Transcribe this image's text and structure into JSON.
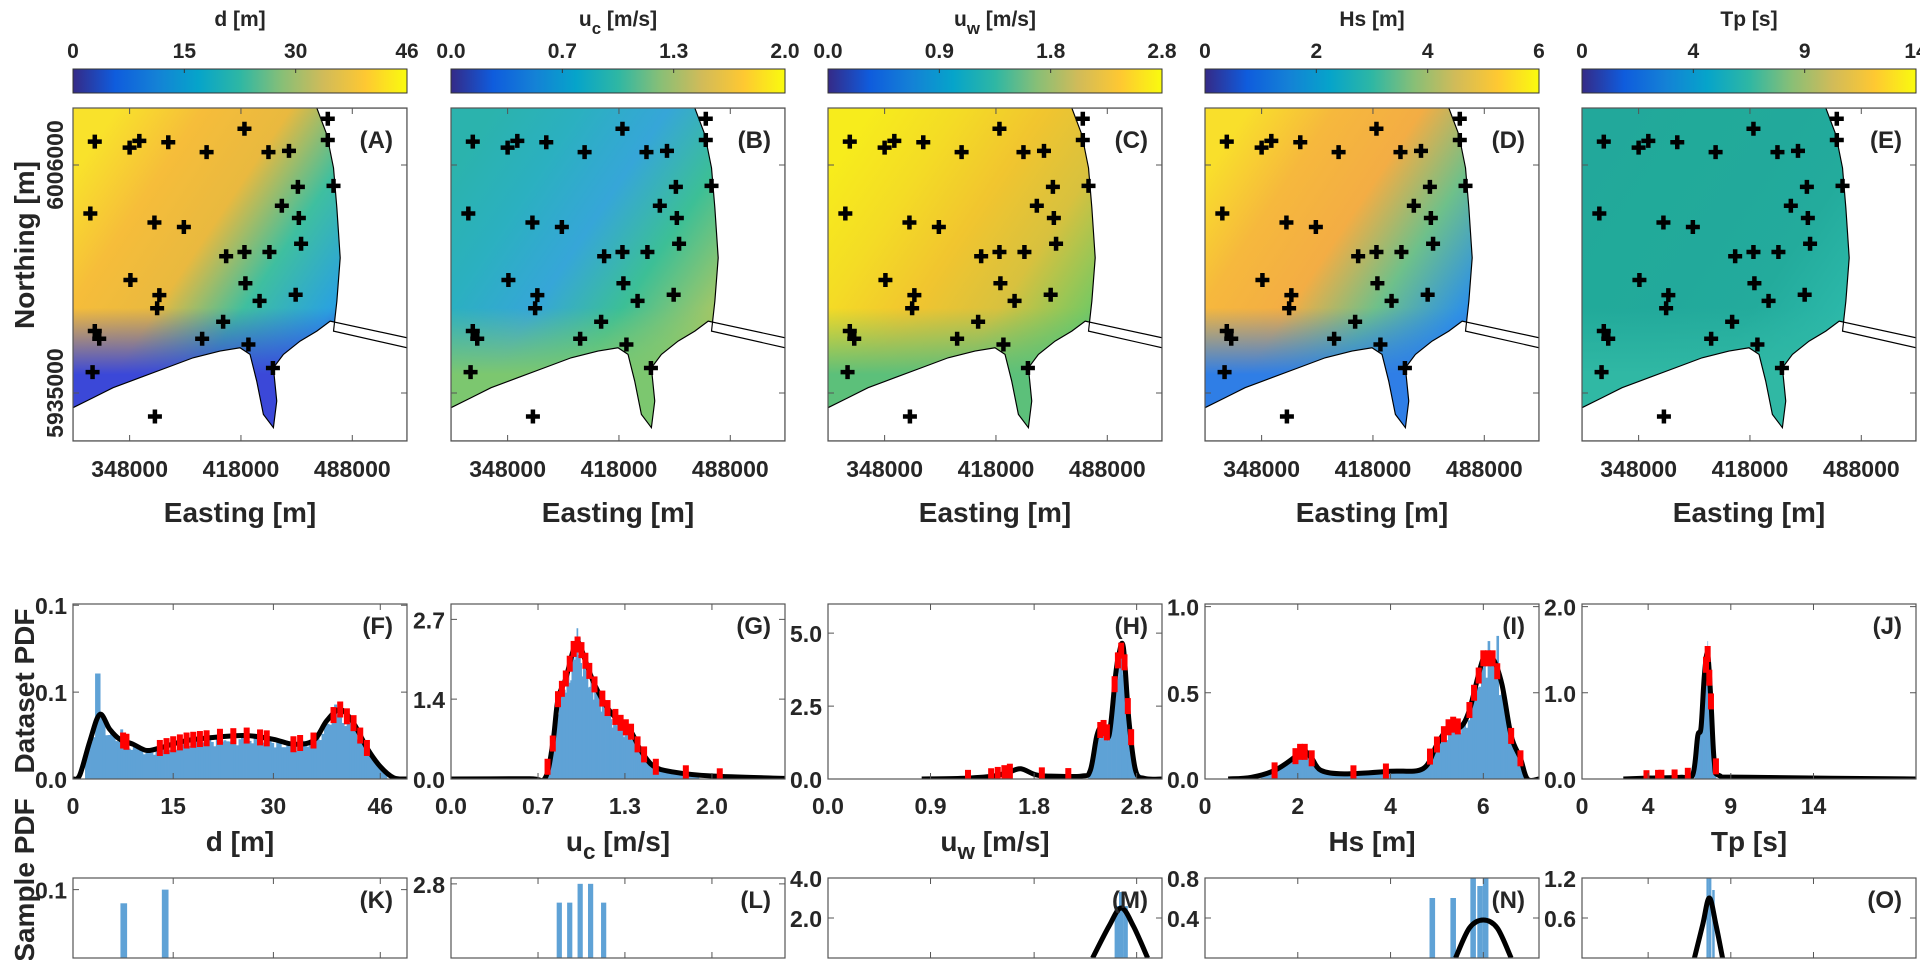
{
  "figure": {
    "northing_label": "Northing [m]",
    "easting_label": "Easting [m]",
    "dataset_pdf_label": "Dataset PDF",
    "sample_pdf_label": "Sample PDF"
  },
  "colors": {
    "hist_bar": "#5fa2d6",
    "kde_line": "#000000",
    "marker": "#ff0000",
    "land": "#ffffff",
    "station": "#000000"
  },
  "colormap": [
    "#352a87",
    "#0f5cdd",
    "#1481d6",
    "#06a4ca",
    "#2eb7a4",
    "#87bf77",
    "#d1bb59",
    "#fec832",
    "#f9fb0e"
  ],
  "map_axes": {
    "xlim": [
      312400,
      522400
    ],
    "ylim": [
      5920070,
      6023750
    ],
    "easting_tick_values": [
      348000,
      418000,
      488000
    ],
    "easting_ticks": [
      "348000",
      "418000",
      "488000"
    ],
    "northing_tick_values": [
      6006000,
      5935000
    ],
    "northing_ticks": [
      "6006000",
      "5935000"
    ]
  },
  "maps": [
    {
      "panel": "(A)",
      "title": "d [m]",
      "colorbar_ticks": [
        "0",
        "15",
        "30",
        "46"
      ],
      "field_colors": [
        "#f9e22b",
        "#f6bd3a",
        "#e9b93f",
        "#3fbf9f",
        "#2aa2df",
        "#3b40d0"
      ],
      "nearshore_color": "#3b48d8"
    },
    {
      "panel": "(B)",
      "title": "u",
      "title_sub": "c",
      "title_unit": " [m/s]",
      "colorbar_ticks": [
        "0.0",
        "0.7",
        "1.3",
        "2.0"
      ],
      "field_colors": [
        "#2bb3ad",
        "#2bb0c0",
        "#36a6d8",
        "#3cbf96",
        "#9cc66a",
        "#e8c93a"
      ],
      "nearshore_color": "#7cc76f"
    },
    {
      "panel": "(C)",
      "title": "u",
      "title_sub": "w",
      "title_unit": " [m/s]",
      "colorbar_ticks": [
        "0.0",
        "0.9",
        "1.8",
        "2.8"
      ],
      "field_colors": [
        "#f7ec1c",
        "#f4dc25",
        "#f1c52f",
        "#d8c13e",
        "#7cc860",
        "#2db3a0"
      ],
      "nearshore_color": "#5cc07a"
    },
    {
      "panel": "(D)",
      "title": "Hs [m]",
      "colorbar_ticks": [
        "0",
        "2",
        "4",
        "6"
      ],
      "field_colors": [
        "#f9df2b",
        "#f6b83d",
        "#f3ad44",
        "#6ec08a",
        "#2f92e4",
        "#3a5be0"
      ],
      "nearshore_color": "#2f7ee6"
    },
    {
      "panel": "(E)",
      "title": "Tp [s]",
      "colorbar_ticks": [
        "0",
        "4",
        "9",
        "14"
      ],
      "field_colors": [
        "#22a89b",
        "#21aa9a",
        "#22a99b",
        "#23ab9c",
        "#2bb7a8",
        "#3ec4a8"
      ],
      "nearshore_color": "#30b8a4"
    }
  ],
  "stations": [
    [
      326100,
      6013300
    ],
    [
      348000,
      6011400
    ],
    [
      354100,
      6013500
    ],
    [
      372300,
      6013100
    ],
    [
      396400,
      6010000
    ],
    [
      420200,
      6017300
    ],
    [
      435300,
      6010000
    ],
    [
      448200,
      6010400
    ],
    [
      472600,
      6020400
    ],
    [
      472600,
      6013800
    ],
    [
      453800,
      5999200
    ],
    [
      476200,
      5999500
    ],
    [
      443700,
      5993300
    ],
    [
      454400,
      5989500
    ],
    [
      323300,
      5990900
    ],
    [
      363600,
      5988100
    ],
    [
      382100,
      5986700
    ],
    [
      455800,
      5981500
    ],
    [
      408700,
      5977600
    ],
    [
      420200,
      5978900
    ],
    [
      435900,
      5978900
    ],
    [
      348500,
      5970200
    ],
    [
      420800,
      5969200
    ],
    [
      366700,
      5965500
    ],
    [
      365300,
      5961400
    ],
    [
      429700,
      5963700
    ],
    [
      452400,
      5965600
    ],
    [
      406800,
      5957200
    ],
    [
      326100,
      5954300
    ],
    [
      328900,
      5951900
    ],
    [
      393600,
      5951900
    ],
    [
      422700,
      5950100
    ],
    [
      438100,
      5942800
    ],
    [
      324700,
      5941500
    ],
    [
      363900,
      5927700
    ]
  ],
  "chart_data": [
    {
      "panel": "(F)",
      "type": "bar",
      "xlabel": "d [m]",
      "ylabel": "Dataset PDF",
      "xlim": [
        0,
        50
      ],
      "ylim": [
        0,
        0.141
      ],
      "xtick_values": [
        0,
        15,
        30,
        46
      ],
      "xticks": [
        "0",
        "15",
        "30",
        "46"
      ],
      "ytick_values": [
        0,
        0.07,
        0.14
      ],
      "yticks": [
        "0.0",
        "0.1",
        "0.1"
      ],
      "kde": [
        [
          0,
          0
        ],
        [
          1,
          0.003
        ],
        [
          2.5,
          0.03
        ],
        [
          4,
          0.052
        ],
        [
          5.5,
          0.04
        ],
        [
          7,
          0.032
        ],
        [
          9,
          0.028
        ],
        [
          11,
          0.023
        ],
        [
          13,
          0.025
        ],
        [
          17,
          0.031
        ],
        [
          22,
          0.034
        ],
        [
          26,
          0.035
        ],
        [
          30,
          0.032
        ],
        [
          33,
          0.028
        ],
        [
          36,
          0.031
        ],
        [
          38,
          0.047
        ],
        [
          40,
          0.056
        ],
        [
          42,
          0.045
        ],
        [
          44,
          0.025
        ],
        [
          46,
          0.01
        ],
        [
          48,
          0.001
        ],
        [
          50,
          0
        ]
      ],
      "hist_range": [
        1.8,
        47
      ],
      "hist_spikes": [
        [
          3.7,
          0.085
        ],
        [
          4.0,
          0.07
        ],
        [
          7.2,
          0.04
        ],
        [
          39.0,
          0.058
        ],
        [
          39.3,
          0.06
        ]
      ],
      "markers": [
        7.5,
        8,
        13,
        14,
        15,
        16,
        17,
        18,
        19,
        20,
        22,
        24,
        26,
        28,
        29,
        33,
        34,
        36,
        39,
        40,
        41,
        42,
        43,
        44
      ]
    },
    {
      "panel": "(G)",
      "type": "bar",
      "xlabel": "u",
      "xlabel_sub": "c",
      "xlabel_unit": " [m/s]",
      "xlim": [
        0,
        2.56
      ],
      "ylim": [
        0,
        2.96
      ],
      "xtick_values": [
        0,
        0.667,
        1.333,
        2.0
      ],
      "xticks": [
        "0.0",
        "0.7",
        "1.3",
        "2.0"
      ],
      "ytick_values": [
        0,
        1.35,
        2.7
      ],
      "yticks": [
        "0.0",
        "1.4",
        "2.7"
      ],
      "kde": [
        [
          0,
          0
        ],
        [
          0.6,
          0.005
        ],
        [
          0.72,
          0.01
        ],
        [
          0.78,
          0.6
        ],
        [
          0.82,
          1.35
        ],
        [
          0.88,
          1.7
        ],
        [
          0.94,
          2.2
        ],
        [
          0.98,
          2.3
        ],
        [
          1.03,
          2.0
        ],
        [
          1.1,
          1.6
        ],
        [
          1.2,
          1.2
        ],
        [
          1.3,
          0.95
        ],
        [
          1.38,
          0.8
        ],
        [
          1.45,
          0.5
        ],
        [
          1.55,
          0.22
        ],
        [
          1.7,
          0.12
        ],
        [
          2.0,
          0.05
        ],
        [
          2.56,
          0.01
        ]
      ],
      "hist_range": [
        0.74,
        1.9
      ],
      "hist_spikes": [
        [
          0.97,
          2.55
        ]
      ],
      "markers": [
        0.74,
        0.78,
        0.82,
        0.85,
        0.88,
        0.91,
        0.94,
        0.97,
        1.0,
        1.03,
        1.06,
        1.1,
        1.16,
        1.2,
        1.26,
        1.3,
        1.34,
        1.38,
        1.43,
        1.48,
        1.57,
        1.8,
        2.06
      ]
    },
    {
      "panel": "(H)",
      "type": "bar",
      "xlabel": "u",
      "xlabel_sub": "w",
      "xlabel_unit": " [m/s]",
      "xlim": [
        0,
        3.03
      ],
      "ylim": [
        0,
        6.0
      ],
      "xtick_values": [
        0,
        0.93,
        1.87,
        2.8
      ],
      "xticks": [
        "0.0",
        "0.9",
        "1.8",
        "2.8"
      ],
      "ytick_values": [
        0,
        2.5,
        5.0
      ],
      "yticks": [
        "0.0",
        "2.5",
        "5.0"
      ],
      "kde": [
        [
          0.85,
          0
        ],
        [
          1.2,
          0.02
        ],
        [
          1.5,
          0.1
        ],
        [
          1.65,
          0.25
        ],
        [
          1.75,
          0.35
        ],
        [
          1.88,
          0.15
        ],
        [
          2.0,
          0.1
        ],
        [
          2.3,
          0.1
        ],
        [
          2.38,
          0.3
        ],
        [
          2.44,
          1.5
        ],
        [
          2.49,
          1.8
        ],
        [
          2.55,
          1.5
        ],
        [
          2.61,
          3.6
        ],
        [
          2.64,
          4.3
        ],
        [
          2.68,
          4.5
        ],
        [
          2.73,
          2.0
        ],
        [
          2.79,
          0.3
        ],
        [
          2.87,
          0.02
        ],
        [
          3.03,
          0
        ]
      ],
      "hist_range": [
        2.36,
        2.85
      ],
      "hist_spikes": [
        [
          2.68,
          4.7
        ]
      ],
      "markers": [
        1.27,
        1.48,
        1.54,
        1.6,
        1.65,
        1.94,
        2.18,
        2.47,
        2.5,
        2.53,
        2.6,
        2.63,
        2.66,
        2.69,
        2.72,
        2.75
      ]
    },
    {
      "panel": "(I)",
      "type": "bar",
      "xlabel": "Hs [m]",
      "xlim": [
        0,
        7.2
      ],
      "ylim": [
        0,
        1.015
      ],
      "xtick_values": [
        0,
        2,
        4,
        6
      ],
      "xticks": [
        "0",
        "2",
        "4",
        "6"
      ],
      "ytick_values": [
        0,
        0.5,
        1.0
      ],
      "yticks": [
        "0.0",
        "0.5",
        "1.0"
      ],
      "kde": [
        [
          0.5,
          0
        ],
        [
          1,
          0.01
        ],
        [
          1.5,
          0.05
        ],
        [
          1.9,
          0.12
        ],
        [
          2.1,
          0.17
        ],
        [
          2.3,
          0.12
        ],
        [
          2.5,
          0.05
        ],
        [
          3,
          0.03
        ],
        [
          4,
          0.045
        ],
        [
          4.7,
          0.06
        ],
        [
          5.0,
          0.2
        ],
        [
          5.3,
          0.32
        ],
        [
          5.5,
          0.3
        ],
        [
          5.7,
          0.4
        ],
        [
          6.0,
          0.7
        ],
        [
          6.2,
          0.7
        ],
        [
          6.4,
          0.55
        ],
        [
          6.6,
          0.25
        ],
        [
          6.8,
          0.12
        ],
        [
          6.95,
          0.0
        ],
        [
          7.2,
          0
        ]
      ],
      "hist_range": [
        1.2,
        6.9
      ],
      "hist_spikes": [
        [
          6.1,
          0.8
        ],
        [
          6.3,
          0.83
        ]
      ],
      "markers": [
        1.5,
        1.95,
        2.05,
        2.15,
        2.3,
        3.2,
        3.9,
        4.85,
        5.0,
        5.15,
        5.25,
        5.35,
        5.45,
        5.7,
        5.8,
        5.9,
        6.0,
        6.1,
        6.2,
        6.3,
        6.6,
        6.8
      ]
    },
    {
      "panel": "(J)",
      "type": "bar",
      "xlabel": "Tp [s]",
      "xlim": [
        0,
        20.2
      ],
      "ylim": [
        0,
        2.03
      ],
      "xtick_values": [
        0,
        4,
        9,
        14
      ],
      "xticks": [
        "0",
        "4",
        "9",
        "14"
      ],
      "ytick_values": [
        0,
        1.0,
        2.0
      ],
      "yticks": [
        "0.0",
        "1.0",
        "2.0"
      ],
      "kde": [
        [
          2.5,
          0
        ],
        [
          4,
          0.01
        ],
        [
          6,
          0.02
        ],
        [
          6.7,
          0.05
        ],
        [
          7.0,
          0.5
        ],
        [
          7.2,
          0.6
        ],
        [
          7.4,
          1.2
        ],
        [
          7.6,
          1.45
        ],
        [
          7.8,
          0.9
        ],
        [
          8.0,
          0.2
        ],
        [
          8.3,
          0.04
        ],
        [
          10,
          0.02
        ],
        [
          20.2,
          0
        ]
      ],
      "hist_range": [
        6.8,
        8.1
      ],
      "hist_spikes": [
        [
          7.6,
          1.6
        ]
      ],
      "markers": [
        3.9,
        4.6,
        4.8,
        5.6,
        6.4,
        7.5,
        7.6,
        7.7,
        7.8,
        8.1
      ]
    },
    {
      "panel": "(K)",
      "type": "bar",
      "xlim": [
        0,
        50
      ],
      "ylim": [
        0,
        0.117
      ],
      "xtick_values": [
        0,
        15,
        30,
        46
      ],
      "ytick_values": [
        0.1
      ],
      "yticks": [
        "0.1"
      ],
      "bars": [
        [
          7.6,
          0.08
        ],
        [
          13.8,
          0.1
        ]
      ],
      "bar_width": 1.0
    },
    {
      "panel": "(L)",
      "type": "bar",
      "xlim": [
        0,
        2.56
      ],
      "ylim": [
        0,
        3.02
      ],
      "xtick_values": [
        0,
        0.667,
        1.333,
        2.0
      ],
      "ytick_values": [
        2.8
      ],
      "yticks": [
        "2.8"
      ],
      "bars": [
        [
          0.83,
          2.09
        ],
        [
          0.91,
          2.09
        ],
        [
          0.99,
          2.8
        ],
        [
          1.07,
          2.8
        ],
        [
          1.17,
          2.09
        ]
      ],
      "bar_width": 0.04
    },
    {
      "panel": "(M)",
      "type": "bar",
      "xlim": [
        0,
        3.03
      ],
      "ylim": [
        0,
        4.0
      ],
      "xtick_values": [
        0,
        0.93,
        1.87,
        2.8
      ],
      "ytick_values": [
        2.0,
        4.0
      ],
      "yticks": [
        "2.0",
        "4.0"
      ],
      "bars": [
        [
          2.62,
          2.6
        ],
        [
          2.66,
          3.3
        ],
        [
          2.7,
          2.6
        ]
      ],
      "bar_width": 0.04,
      "kde": [
        [
          2.4,
          0
        ],
        [
          2.55,
          1.6
        ],
        [
          2.66,
          2.5
        ],
        [
          2.77,
          1.6
        ],
        [
          2.9,
          0
        ]
      ]
    },
    {
      "panel": "(N)",
      "type": "bar",
      "xlim": [
        0,
        7.2
      ],
      "ylim": [
        0,
        0.8
      ],
      "xtick_values": [
        0,
        2,
        4,
        6
      ],
      "ytick_values": [
        0.4,
        0.8
      ],
      "yticks": [
        "0.4",
        "0.8"
      ],
      "bars": [
        [
          4.9,
          0.6
        ],
        [
          5.35,
          0.6
        ],
        [
          5.78,
          0.9
        ],
        [
          5.93,
          0.72
        ],
        [
          6.05,
          0.9
        ]
      ],
      "bar_width": 0.12,
      "kde": [
        [
          5.4,
          0
        ],
        [
          5.7,
          0.3
        ],
        [
          6.0,
          0.38
        ],
        [
          6.3,
          0.3
        ],
        [
          6.6,
          0
        ]
      ]
    },
    {
      "panel": "(O)",
      "type": "bar",
      "xlim": [
        0,
        20.2
      ],
      "ylim": [
        0,
        1.2
      ],
      "xtick_values": [
        0,
        4,
        9,
        14
      ],
      "ytick_values": [
        0.6,
        1.2
      ],
      "yticks": [
        "0.6",
        "1.2"
      ],
      "bars": [
        [
          7.6,
          1.3
        ],
        [
          7.75,
          1.3
        ],
        [
          7.95,
          1.02
        ]
      ],
      "bar_width": 0.15,
      "kde": [
        [
          6.8,
          0
        ],
        [
          7.3,
          0.5
        ],
        [
          7.7,
          0.9
        ],
        [
          8.1,
          0.5
        ],
        [
          8.5,
          0
        ]
      ]
    }
  ]
}
